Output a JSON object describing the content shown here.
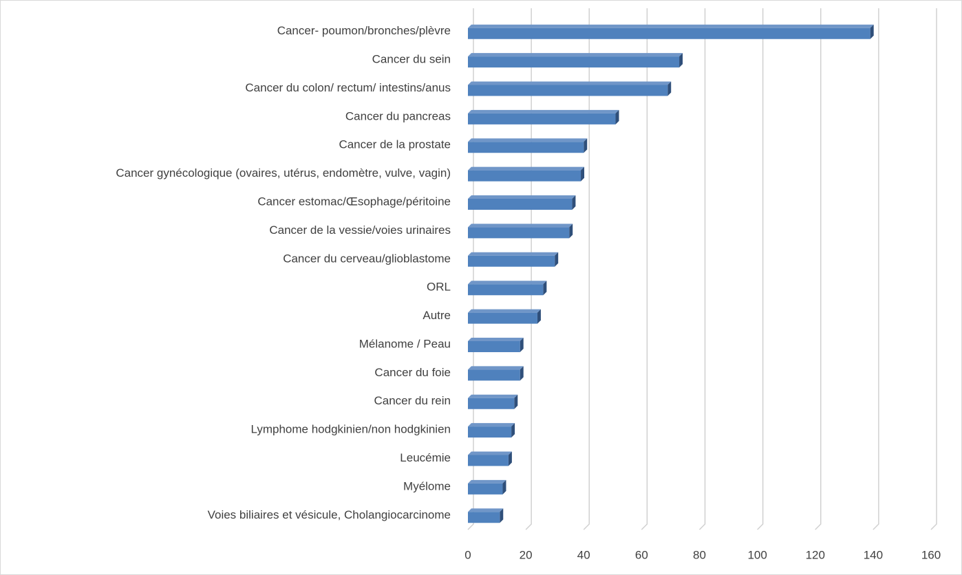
{
  "chart_data": {
    "type": "bar3d",
    "categories": [
      "Cancer- poumon/bronches/plèvre",
      "Cancer du sein",
      "Cancer du colon/ rectum/ intestins/anus",
      "Cancer du pancreas",
      "Cancer de la prostate",
      "Cancer gynécologique (ovaires, utérus, endomètre, vulve, vagin)",
      "Cancer estomac/Œsophage/péritoine",
      "Cancer de la vessie/voies urinaires",
      "Cancer du cerveau/glioblastome",
      "ORL",
      "Autre",
      "Mélanome / Peau",
      "Cancer du foie",
      "Cancer du rein",
      "Lymphome hodgkinien/non hodgkinien",
      "Leucémie",
      "Myélome",
      "Voies biliaires et vésicule, Cholangiocarcinome"
    ],
    "values": [
      139,
      73,
      69,
      51,
      40,
      39,
      36,
      35,
      30,
      26,
      24,
      18,
      18,
      16,
      15,
      14,
      12,
      11
    ],
    "color": "#4f81bd",
    "xlim": [
      0,
      160
    ],
    "xticks": [
      0,
      20,
      40,
      60,
      80,
      100,
      120,
      140,
      160
    ],
    "grid": true
  }
}
